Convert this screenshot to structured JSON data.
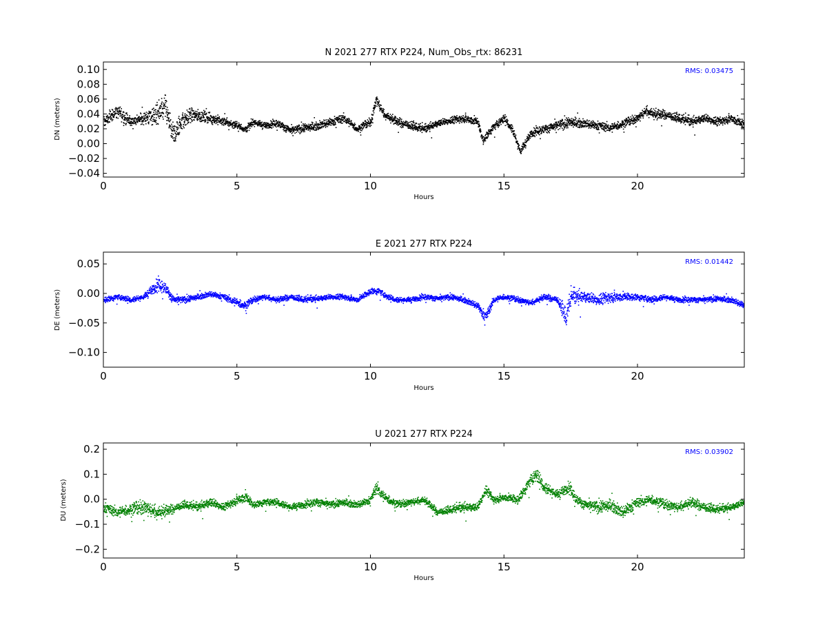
{
  "figure": {
    "background": "#ffffff"
  },
  "chart_data": [
    {
      "type": "scatter",
      "title": "N 2021 277 RTX  P224, Num_Obs_rtx: 86231",
      "xlabel": "Hours",
      "ylabel": "DN (meters)",
      "xlim": [
        0,
        24
      ],
      "ylim": [
        -0.045,
        0.11
      ],
      "xticks": [
        0,
        5,
        10,
        15,
        20
      ],
      "yticks": [
        -0.04,
        -0.02,
        0.0,
        0.02,
        0.04,
        0.06,
        0.08,
        0.1
      ],
      "ytick_labels": [
        "−0.04",
        "−0.02",
        "0.00",
        "0.02",
        "0.04",
        "0.06",
        "0.08",
        "0.10"
      ],
      "color": "#000000",
      "rms_label": "RMS:  0.03475",
      "grid": false,
      "series": [
        {
          "x": [
            0,
            0.5,
            1,
            1.5,
            2,
            2.3,
            2.6,
            2.9,
            3.3,
            4,
            4.5,
            5,
            5.3,
            5.6,
            6,
            6.5,
            7,
            7.5,
            8,
            8.5,
            9,
            9.5,
            10,
            10.2,
            10.5,
            11,
            11.5,
            12,
            12.5,
            13,
            13.5,
            14,
            14.2,
            14.5,
            15,
            15.3,
            15.6,
            16,
            16.5,
            17,
            17.5,
            18,
            18.5,
            19,
            19.5,
            20,
            20.3,
            20.7,
            21,
            21.5,
            22,
            22.5,
            23,
            23.5,
            24
          ],
          "y": [
            0.03,
            0.045,
            0.03,
            0.035,
            0.04,
            0.05,
            0.01,
            0.03,
            0.04,
            0.035,
            0.03,
            0.025,
            0.02,
            0.03,
            0.025,
            0.028,
            0.018,
            0.022,
            0.025,
            0.03,
            0.035,
            0.02,
            0.03,
            0.06,
            0.04,
            0.03,
            0.025,
            0.02,
            0.028,
            0.032,
            0.035,
            0.03,
            0.005,
            0.02,
            0.035,
            0.02,
            -0.01,
            0.015,
            0.02,
            0.025,
            0.03,
            0.028,
            0.025,
            0.022,
            0.028,
            0.035,
            0.045,
            0.04,
            0.04,
            0.035,
            0.03,
            0.035,
            0.03,
            0.035,
            0.025
          ],
          "spread": [
            0.015,
            0.02,
            0.015,
            0.015,
            0.035,
            0.035,
            0.035,
            0.03,
            0.02,
            0.015,
            0.012,
            0.01,
            0.012,
            0.01,
            0.01,
            0.01,
            0.012,
            0.012,
            0.012,
            0.012,
            0.012,
            0.01,
            0.012,
            0.015,
            0.012,
            0.012,
            0.012,
            0.01,
            0.01,
            0.01,
            0.012,
            0.012,
            0.012,
            0.012,
            0.012,
            0.012,
            0.012,
            0.012,
            0.012,
            0.015,
            0.015,
            0.012,
            0.012,
            0.012,
            0.012,
            0.012,
            0.015,
            0.015,
            0.012,
            0.012,
            0.012,
            0.012,
            0.012,
            0.012,
            0.015
          ]
        }
      ]
    },
    {
      "type": "scatter",
      "title": "E 2021 277 RTX  P224",
      "xlabel": "Hours",
      "ylabel": "DE (meters)",
      "xlim": [
        0,
        24
      ],
      "ylim": [
        -0.125,
        0.07
      ],
      "xticks": [
        0,
        5,
        10,
        15,
        20
      ],
      "yticks": [
        -0.1,
        -0.05,
        0.0,
        0.05
      ],
      "ytick_labels": [
        "−0.10",
        "−0.05",
        "0.00",
        "0.05"
      ],
      "color": "#0000ff",
      "rms_label": "RMS:  0.01442",
      "grid": false,
      "series": [
        {
          "x": [
            0,
            0.5,
            1,
            1.5,
            2,
            2.3,
            2.6,
            3,
            3.5,
            4,
            4.5,
            5,
            5.3,
            5.6,
            6,
            6.5,
            7,
            7.5,
            8,
            8.5,
            9,
            9.5,
            10,
            10.3,
            10.6,
            11,
            11.5,
            12,
            12.5,
            13,
            13.5,
            14,
            14.3,
            14.6,
            15,
            15.5,
            16,
            16.5,
            17,
            17.3,
            17.5,
            18,
            18.5,
            19,
            19.5,
            20,
            20.5,
            21,
            21.5,
            22,
            22.5,
            23,
            23.5,
            24
          ],
          "y": [
            -0.01,
            -0.005,
            -0.01,
            -0.005,
            0.015,
            0.01,
            -0.01,
            -0.01,
            -0.005,
            0.0,
            -0.005,
            -0.015,
            -0.02,
            -0.01,
            -0.005,
            -0.01,
            -0.005,
            -0.01,
            -0.008,
            -0.005,
            -0.005,
            -0.01,
            0.005,
            0.005,
            -0.005,
            -0.01,
            -0.01,
            -0.005,
            -0.008,
            -0.005,
            -0.01,
            -0.02,
            -0.04,
            -0.01,
            -0.005,
            -0.01,
            -0.015,
            -0.005,
            -0.01,
            -0.04,
            -0.005,
            -0.005,
            -0.01,
            -0.005,
            -0.005,
            -0.005,
            -0.01,
            -0.005,
            -0.01,
            -0.01,
            -0.01,
            -0.008,
            -0.01,
            -0.02
          ],
          "spread": [
            0.012,
            0.01,
            0.01,
            0.01,
            0.025,
            0.02,
            0.015,
            0.012,
            0.01,
            0.01,
            0.01,
            0.015,
            0.015,
            0.01,
            0.01,
            0.01,
            0.01,
            0.01,
            0.01,
            0.01,
            0.01,
            0.01,
            0.012,
            0.012,
            0.01,
            0.01,
            0.01,
            0.01,
            0.01,
            0.01,
            0.01,
            0.012,
            0.02,
            0.01,
            0.01,
            0.01,
            0.01,
            0.01,
            0.012,
            0.035,
            0.025,
            0.02,
            0.02,
            0.02,
            0.015,
            0.012,
            0.012,
            0.01,
            0.01,
            0.01,
            0.01,
            0.01,
            0.01,
            0.012
          ]
        }
      ]
    },
    {
      "type": "scatter",
      "title": "U 2021 277 RTX  P224",
      "xlabel": "Hours",
      "ylabel": "DU (meters)",
      "xlim": [
        0,
        24
      ],
      "ylim": [
        -0.235,
        0.225
      ],
      "xticks": [
        0,
        5,
        10,
        15,
        20
      ],
      "yticks": [
        -0.2,
        -0.1,
        0.0,
        0.1,
        0.2
      ],
      "ytick_labels": [
        "−0.2",
        "−0.1",
        "0.0",
        "0.1",
        "0.2"
      ],
      "color": "#008000",
      "rms_label": "RMS:  0.03902",
      "grid": false,
      "series": [
        {
          "x": [
            0,
            0.5,
            1,
            1.5,
            2,
            2.5,
            3,
            3.5,
            4,
            4.5,
            5,
            5.3,
            5.6,
            6,
            6.5,
            7,
            7.5,
            8,
            8.5,
            9,
            9.5,
            10,
            10.2,
            10.5,
            11,
            11.5,
            12,
            12.5,
            13,
            13.5,
            14,
            14.3,
            14.6,
            15,
            15.5,
            16,
            16.2,
            16.5,
            17,
            17.4,
            17.7,
            18,
            18.5,
            19,
            19.4,
            19.7,
            20,
            20.5,
            21,
            21.5,
            22,
            22.5,
            23,
            23.5,
            24
          ],
          "y": [
            -0.03,
            -0.05,
            -0.04,
            -0.03,
            -0.05,
            -0.04,
            -0.02,
            -0.03,
            -0.01,
            -0.03,
            0.0,
            0.01,
            -0.02,
            -0.01,
            -0.01,
            -0.03,
            -0.02,
            -0.01,
            -0.02,
            -0.01,
            -0.02,
            0.0,
            0.05,
            0.01,
            -0.02,
            -0.01,
            0.0,
            -0.05,
            -0.04,
            -0.03,
            -0.03,
            0.04,
            0.0,
            0.01,
            0.0,
            0.08,
            0.1,
            0.05,
            0.02,
            0.05,
            0.0,
            -0.02,
            -0.03,
            -0.02,
            -0.05,
            -0.03,
            -0.01,
            0.0,
            -0.02,
            -0.03,
            -0.01,
            -0.03,
            -0.04,
            -0.03,
            -0.01
          ],
          "spread": [
            0.04,
            0.04,
            0.05,
            0.06,
            0.06,
            0.04,
            0.03,
            0.03,
            0.04,
            0.03,
            0.04,
            0.05,
            0.03,
            0.03,
            0.03,
            0.03,
            0.03,
            0.035,
            0.03,
            0.03,
            0.03,
            0.03,
            0.05,
            0.04,
            0.03,
            0.03,
            0.03,
            0.03,
            0.03,
            0.035,
            0.035,
            0.04,
            0.035,
            0.03,
            0.04,
            0.05,
            0.06,
            0.05,
            0.04,
            0.05,
            0.04,
            0.04,
            0.05,
            0.05,
            0.05,
            0.05,
            0.04,
            0.04,
            0.04,
            0.04,
            0.04,
            0.04,
            0.03,
            0.03,
            0.03
          ]
        }
      ]
    }
  ]
}
